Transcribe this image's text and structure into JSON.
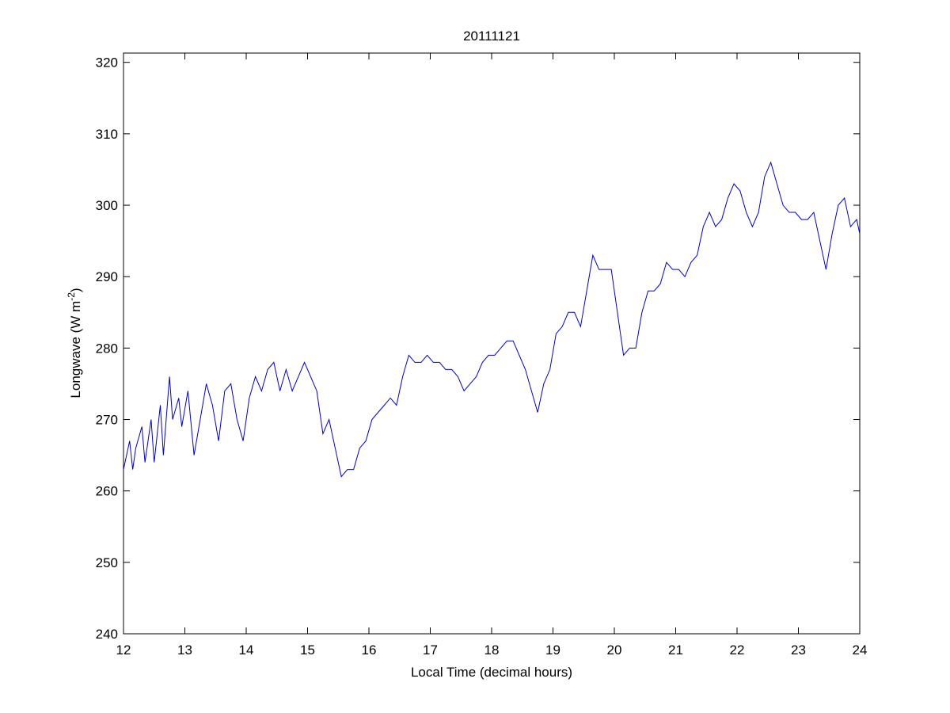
{
  "chart_data": {
    "type": "line",
    "title": "20111121",
    "xlabel": "Local Time (decimal hours)",
    "ylabel": [
      "Longwave (W m",
      "-2",
      ")"
    ],
    "x": [
      12.0,
      12.1,
      12.15,
      12.2,
      12.3,
      12.35,
      12.45,
      12.5,
      12.6,
      12.65,
      12.75,
      12.8,
      12.9,
      12.95,
      13.05,
      13.15,
      13.25,
      13.35,
      13.45,
      13.55,
      13.65,
      13.75,
      13.85,
      13.95,
      14.05,
      14.15,
      14.25,
      14.35,
      14.45,
      14.55,
      14.65,
      14.75,
      14.85,
      14.95,
      15.05,
      15.15,
      15.25,
      15.35,
      15.45,
      15.55,
      15.65,
      15.75,
      15.85,
      15.95,
      16.05,
      16.15,
      16.25,
      16.35,
      16.45,
      16.55,
      16.65,
      16.75,
      16.85,
      16.95,
      17.05,
      17.15,
      17.25,
      17.35,
      17.45,
      17.55,
      17.65,
      17.75,
      17.85,
      17.95,
      18.05,
      18.15,
      18.25,
      18.35,
      18.45,
      18.55,
      18.65,
      18.75,
      18.85,
      18.95,
      19.05,
      19.15,
      19.25,
      19.35,
      19.45,
      19.55,
      19.65,
      19.75,
      19.85,
      19.95,
      20.05,
      20.15,
      20.25,
      20.35,
      20.45,
      20.55,
      20.65,
      20.75,
      20.85,
      20.95,
      21.05,
      21.15,
      21.25,
      21.35,
      21.45,
      21.55,
      21.65,
      21.75,
      21.85,
      21.95,
      22.05,
      22.15,
      22.25,
      22.35,
      22.45,
      22.55,
      22.65,
      22.75,
      22.85,
      22.95,
      23.05,
      23.15,
      23.25,
      23.35,
      23.45,
      23.55,
      23.65,
      23.75,
      23.85,
      23.95,
      24.0
    ],
    "series": [
      {
        "name": "Longwave",
        "color": "#0000cc",
        "values": [
          263,
          267,
          263,
          266,
          269,
          264,
          270,
          264,
          272,
          265,
          276,
          270,
          273,
          269,
          274,
          265,
          270,
          275,
          272,
          267,
          274,
          275,
          270,
          267,
          273,
          276,
          274,
          277,
          278,
          274,
          277,
          274,
          276,
          278,
          276,
          274,
          268,
          270,
          266,
          262,
          263,
          263,
          266,
          267,
          270,
          271,
          272,
          273,
          272,
          276,
          279,
          278,
          278,
          279,
          278,
          278,
          277,
          277,
          276,
          274,
          275,
          276,
          278,
          279,
          279,
          280,
          281,
          281,
          279,
          277,
          274,
          271,
          275,
          277,
          282,
          283,
          285,
          285,
          283,
          288,
          293,
          291,
          291,
          291,
          285,
          279,
          280,
          280,
          285,
          288,
          288,
          289,
          292,
          291,
          291,
          290,
          292,
          293,
          297,
          299,
          297,
          298,
          301,
          303,
          302,
          299,
          297,
          299,
          304,
          306,
          303,
          300,
          299,
          299,
          298,
          298,
          299,
          295,
          291,
          296,
          300,
          301,
          297,
          298,
          296
        ]
      }
    ],
    "xlim": [
      12,
      24
    ],
    "xticks": [
      12,
      13,
      14,
      15,
      16,
      17,
      18,
      19,
      20,
      21,
      22,
      23,
      24
    ],
    "ylim": [
      240,
      321.3
    ],
    "yticks": [
      240,
      250,
      260,
      270,
      280,
      290,
      300,
      310,
      320
    ],
    "grid": false
  }
}
